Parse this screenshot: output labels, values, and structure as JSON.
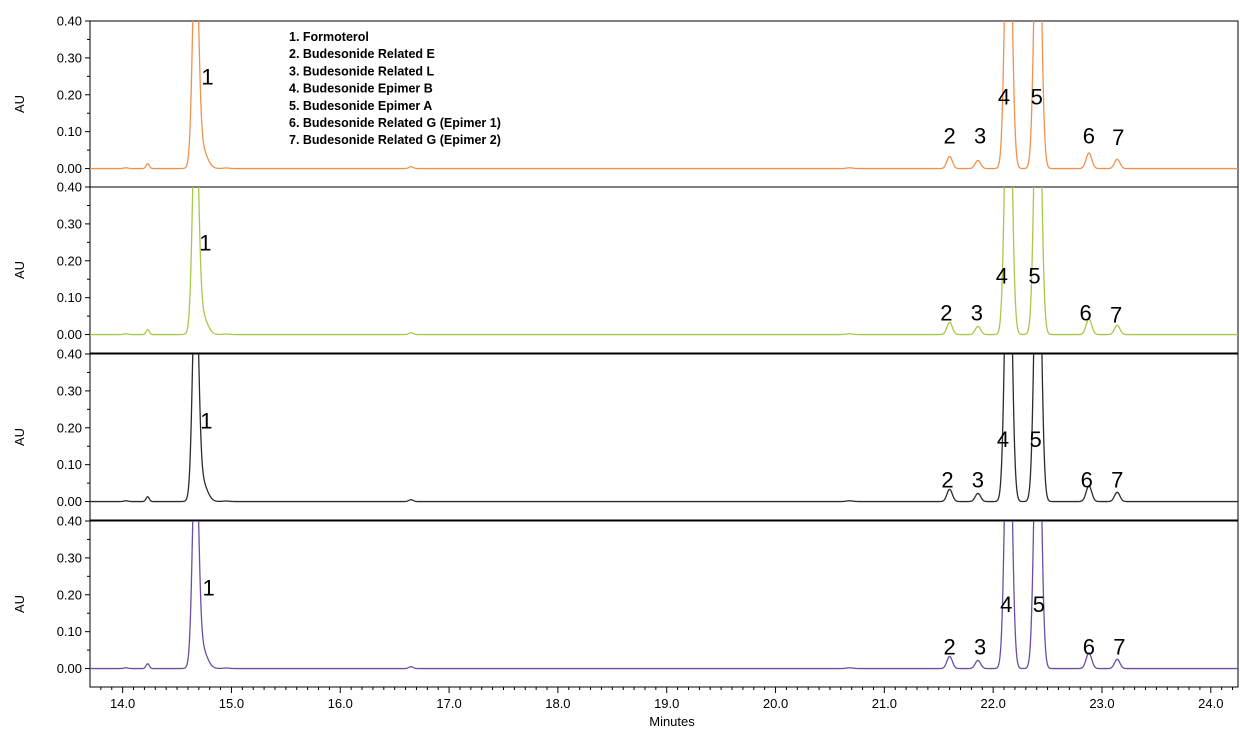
{
  "chart_data": {
    "type": "line",
    "xlabel": "Minutes",
    "ylabel": "AU",
    "xlim": [
      13.7,
      24.25
    ],
    "ylim": [
      -0.05,
      0.4
    ],
    "x_ticks": [
      "14.0",
      "15.0",
      "16.0",
      "17.0",
      "18.0",
      "19.0",
      "20.0",
      "21.0",
      "22.0",
      "23.0",
      "24.0"
    ],
    "x_tick_values": [
      14,
      15,
      16,
      17,
      18,
      19,
      20,
      21,
      22,
      23,
      24
    ],
    "y_ticks": [
      "0.00",
      "0.10",
      "0.20",
      "0.30",
      "0.40"
    ],
    "y_tick_values": [
      0,
      0.1,
      0.2,
      0.3,
      0.4
    ],
    "legend": [
      "1. Formoterol",
      "2. Budesonide Related E",
      "3. Budesonide Related L",
      "4. Budesonide Epimer B",
      "5. Budesonide Epimer A",
      "6. Budesonide Related G (Epimer 1)",
      "7. Budesonide Related G (Epimer 2)"
    ],
    "legend_placement": "top-left",
    "series": [
      {
        "color": "#F0924E",
        "peak_labels": [
          {
            "text": "1",
            "x": 14.78,
            "y": 0.25
          },
          {
            "text": "2",
            "x": 21.6,
            "y": 0.09
          },
          {
            "text": "3",
            "x": 21.88,
            "y": 0.09
          },
          {
            "text": "4",
            "x": 22.1,
            "y": 0.195
          },
          {
            "text": "5",
            "x": 22.4,
            "y": 0.195
          },
          {
            "text": "6",
            "x": 22.88,
            "y": 0.09
          },
          {
            "text": "7",
            "x": 23.15,
            "y": 0.085
          }
        ]
      },
      {
        "color": "#A8C84A",
        "peak_labels": [
          {
            "text": "1",
            "x": 14.76,
            "y": 0.25
          },
          {
            "text": "2",
            "x": 21.57,
            "y": 0.06
          },
          {
            "text": "3",
            "x": 21.85,
            "y": 0.06
          },
          {
            "text": "4",
            "x": 22.08,
            "y": 0.16
          },
          {
            "text": "5",
            "x": 22.38,
            "y": 0.16
          },
          {
            "text": "6",
            "x": 22.85,
            "y": 0.06
          },
          {
            "text": "7",
            "x": 23.13,
            "y": 0.055
          }
        ]
      },
      {
        "color": "#2B2B2B",
        "peak_labels": [
          {
            "text": "1",
            "x": 14.77,
            "y": 0.22
          },
          {
            "text": "2",
            "x": 21.58,
            "y": 0.06
          },
          {
            "text": "3",
            "x": 21.86,
            "y": 0.06
          },
          {
            "text": "4",
            "x": 22.09,
            "y": 0.17
          },
          {
            "text": "5",
            "x": 22.39,
            "y": 0.17
          },
          {
            "text": "6",
            "x": 22.86,
            "y": 0.06
          },
          {
            "text": "7",
            "x": 23.14,
            "y": 0.06
          }
        ]
      },
      {
        "color": "#6A4FA0",
        "peak_labels": [
          {
            "text": "1",
            "x": 14.79,
            "y": 0.22
          },
          {
            "text": "2",
            "x": 21.6,
            "y": 0.06
          },
          {
            "text": "3",
            "x": 21.88,
            "y": 0.06
          },
          {
            "text": "4",
            "x": 22.12,
            "y": 0.175
          },
          {
            "text": "5",
            "x": 22.42,
            "y": 0.175
          },
          {
            "text": "6",
            "x": 22.88,
            "y": 0.06
          },
          {
            "text": "7",
            "x": 23.16,
            "y": 0.06
          }
        ]
      }
    ],
    "peaks": [
      {
        "x": 14.03,
        "height": 0.002,
        "width": 0.02
      },
      {
        "x": 14.23,
        "height": 0.013,
        "width": 0.015
      },
      {
        "x": 14.67,
        "height": 0.6,
        "width": 0.027
      },
      {
        "x": 14.72,
        "height": 0.06,
        "width": 0.05
      },
      {
        "x": 14.95,
        "height": 0.0015,
        "width": 0.03
      },
      {
        "x": 16.65,
        "height": 0.005,
        "width": 0.02
      },
      {
        "x": 20.68,
        "height": 0.002,
        "width": 0.03
      },
      {
        "x": 21.6,
        "height": 0.033,
        "width": 0.025
      },
      {
        "x": 21.86,
        "height": 0.022,
        "width": 0.025
      },
      {
        "x": 22.14,
        "height": 0.9,
        "width": 0.03
      },
      {
        "x": 22.41,
        "height": 0.9,
        "width": 0.03
      },
      {
        "x": 22.88,
        "height": 0.042,
        "width": 0.026
      },
      {
        "x": 23.14,
        "height": 0.025,
        "width": 0.025
      }
    ]
  }
}
